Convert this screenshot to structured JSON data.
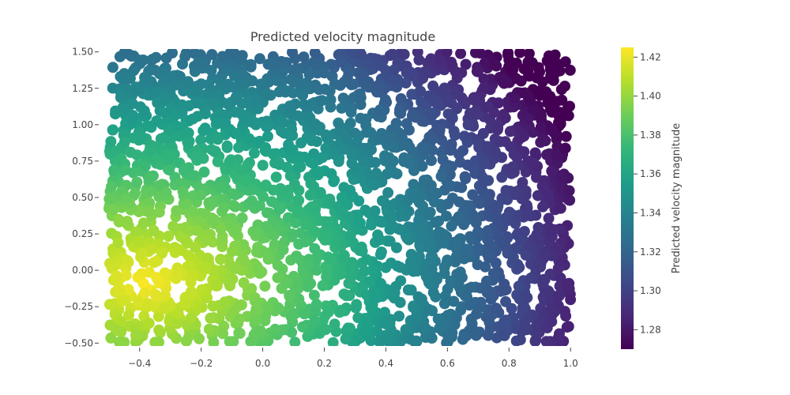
{
  "chart_data": {
    "type": "scatter",
    "title": "Predicted velocity magnitude",
    "xlabel": "",
    "ylabel": "",
    "xlim": [
      -0.52,
      1.02
    ],
    "ylim": [
      -0.52,
      1.52
    ],
    "x_ticks": [
      -0.4,
      -0.2,
      0.0,
      0.2,
      0.4,
      0.6,
      0.8,
      1.0
    ],
    "x_tick_labels": [
      "−0.4",
      "−0.2",
      "0.0",
      "0.2",
      "0.4",
      "0.6",
      "0.8",
      "1.0"
    ],
    "y_ticks": [
      1.5,
      1.25,
      1.0,
      0.75,
      0.5,
      0.25,
      0.0,
      -0.25,
      -0.5
    ],
    "y_tick_labels": [
      "1.50",
      "1.25",
      "1.00",
      "0.75",
      "0.50",
      "0.25",
      "0.00",
      "−0.25",
      "−0.50"
    ],
    "grid": false,
    "domain": {
      "x": [
        -0.5,
        1.0
      ],
      "y": [
        -0.5,
        1.5
      ]
    },
    "field": {
      "description_of_values": "velocity magnitude per point",
      "max_value": 1.425,
      "max_location": [
        -0.38,
        -0.08
      ],
      "min_value": 1.27,
      "min_location": [
        1.0,
        1.45
      ]
    },
    "colorbar": {
      "label": "Predicted velocity magnitude",
      "range": [
        1.27,
        1.425
      ],
      "ticks": [
        1.42,
        1.4,
        1.38,
        1.36,
        1.34,
        1.32,
        1.3,
        1.28
      ],
      "tick_labels": [
        "1.42",
        "1.40",
        "1.38",
        "1.36",
        "1.34",
        "1.32",
        "1.30",
        "1.28"
      ],
      "colorscale": "viridis",
      "colors": [
        "#440154",
        "#482878",
        "#3e4989",
        "#31688e",
        "#26828e",
        "#1f9e89",
        "#35b779",
        "#6ece58",
        "#b5de2b",
        "#fde725"
      ]
    }
  }
}
